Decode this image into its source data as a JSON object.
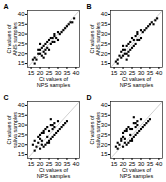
{
  "chart_data": [
    {
      "type": "scatter",
      "title": "A",
      "xlabel": "Ct values of\nNPS samples",
      "ylabel": "Ct values of\nANS samples",
      "x": [
        16,
        17,
        18,
        19,
        19,
        20,
        20,
        21,
        21,
        22,
        22,
        23,
        23,
        24,
        24,
        25,
        25,
        26,
        27,
        27,
        28,
        28,
        29,
        30,
        30,
        31,
        32,
        33,
        34,
        35,
        36,
        37,
        38,
        39,
        22,
        23,
        26,
        28,
        20,
        17
      ],
      "values": [
        17,
        18,
        17,
        20,
        22,
        20,
        22,
        19,
        23,
        21,
        24,
        22,
        25,
        23,
        26,
        22,
        27,
        25,
        26,
        28,
        26,
        29,
        28,
        27,
        31,
        30,
        31,
        32,
        33,
        34,
        35,
        36,
        36,
        38,
        18,
        20,
        28,
        30,
        25,
        15
      ],
      "xlim": [
        13,
        42
      ],
      "ylim": [
        13,
        42
      ],
      "xticks": [
        15,
        20,
        25,
        30,
        35,
        40
      ],
      "yticks": [
        15,
        20,
        25,
        30,
        35,
        40
      ],
      "color": "#000000",
      "marker": "square"
    },
    {
      "type": "scatter",
      "title": "B",
      "xlabel": "Ct values of\nNPS samples",
      "ylabel": "Ct values of\nANS samples",
      "x": [
        16,
        17,
        18,
        19,
        19,
        20,
        20,
        21,
        21,
        22,
        22,
        23,
        23,
        24,
        24,
        25,
        25,
        26,
        27,
        27,
        28,
        28,
        29,
        30,
        30,
        31,
        32,
        33,
        34,
        35,
        36,
        37,
        38,
        39,
        22,
        23,
        26,
        28,
        20,
        17
      ],
      "values": [
        16,
        17,
        19,
        18,
        21,
        19,
        22,
        20,
        22,
        20,
        24,
        21,
        25,
        22,
        26,
        23,
        28,
        24,
        25,
        29,
        27,
        30,
        27,
        28,
        32,
        31,
        32,
        33,
        34,
        35,
        36,
        35,
        37,
        38,
        17,
        19,
        27,
        31,
        24,
        15
      ],
      "xlim": [
        13,
        42
      ],
      "ylim": [
        13,
        42
      ],
      "xticks": [
        15,
        20,
        25,
        30,
        35,
        40
      ],
      "yticks": [
        15,
        20,
        25,
        30,
        35,
        40
      ],
      "color": "#000000",
      "marker": "square"
    },
    {
      "type": "scatter",
      "title": "C",
      "xlabel": "Ct values of\nNPS samples",
      "ylabel": "Ct values of\nsaliva samples",
      "x": [
        16,
        17,
        18,
        19,
        20,
        20,
        21,
        21,
        22,
        22,
        23,
        23,
        24,
        24,
        25,
        25,
        26,
        26,
        27,
        27,
        28,
        28,
        29,
        30,
        30,
        31,
        32,
        33,
        34,
        35,
        17,
        20,
        22,
        24,
        26,
        28,
        21,
        25,
        19,
        27
      ],
      "values": [
        20,
        22,
        19,
        24,
        18,
        25,
        20,
        26,
        19,
        27,
        20,
        28,
        21,
        29,
        22,
        27,
        23,
        30,
        24,
        28,
        25,
        31,
        26,
        27,
        32,
        28,
        29,
        30,
        31,
        32,
        17,
        23,
        26,
        24,
        33,
        29,
        22,
        21,
        21,
        30
      ],
      "xlim": [
        13,
        42
      ],
      "ylim": [
        13,
        42
      ],
      "xticks": [
        15,
        20,
        25,
        30,
        35,
        40
      ],
      "yticks": [
        15,
        20,
        25,
        30,
        35,
        40
      ],
      "color": "#000000",
      "marker": "square"
    },
    {
      "type": "scatter",
      "title": "D",
      "xlabel": "Ct values of\nNPS samples",
      "ylabel": "Ct values of\nsaliva samples",
      "x": [
        16,
        17,
        18,
        19,
        20,
        20,
        21,
        21,
        22,
        22,
        23,
        23,
        24,
        24,
        25,
        25,
        26,
        26,
        27,
        27,
        28,
        28,
        29,
        30,
        30,
        31,
        32,
        33,
        34,
        35,
        17,
        20,
        22,
        24,
        26,
        28,
        21,
        25,
        19,
        27
      ],
      "values": [
        19,
        21,
        20,
        23,
        19,
        26,
        21,
        27,
        20,
        28,
        21,
        29,
        22,
        28,
        23,
        28,
        24,
        31,
        25,
        29,
        26,
        32,
        27,
        28,
        33,
        29,
        30,
        31,
        32,
        33,
        18,
        24,
        27,
        25,
        34,
        30,
        23,
        22,
        22,
        31
      ],
      "xlim": [
        13,
        42
      ],
      "ylim": [
        13,
        42
      ],
      "xticks": [
        15,
        20,
        25,
        30,
        35,
        40
      ],
      "yticks": [
        15,
        20,
        25,
        30,
        35,
        40
      ],
      "color": "#000000",
      "marker": "square"
    }
  ]
}
